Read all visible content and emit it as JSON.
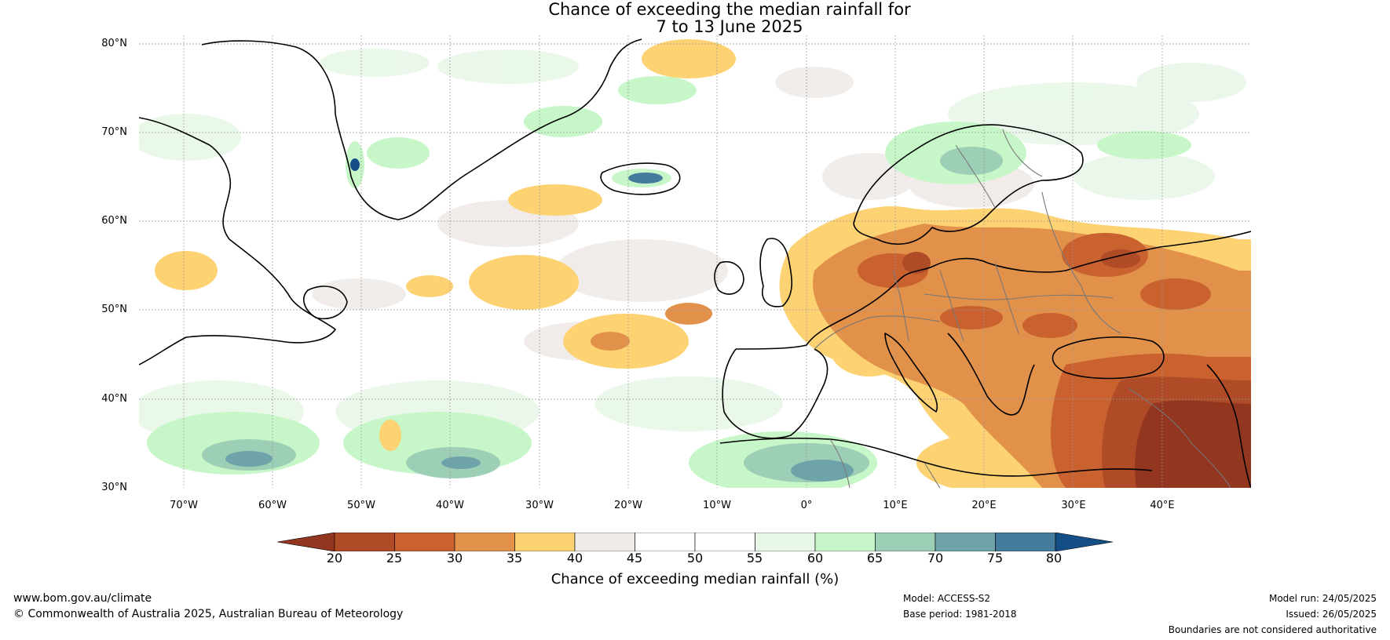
{
  "title": {
    "line1": "Chance of exceeding the median rainfall for",
    "line2": "7 to 13 June 2025"
  },
  "map": {
    "lat_labels": [
      "80°N",
      "70°N",
      "60°N",
      "50°N",
      "40°N",
      "30°N"
    ],
    "lon_labels": [
      "70°W",
      "60°W",
      "50°W",
      "40°W",
      "30°W",
      "20°W",
      "10°W",
      "0°",
      "10°E",
      "20°E",
      "30°E",
      "40°E"
    ],
    "lon_extent": [
      -75,
      50
    ],
    "lat_extent": [
      30,
      81
    ]
  },
  "colorbar": {
    "ticks": [
      "20",
      "25",
      "30",
      "35",
      "40",
      "45",
      "50",
      "55",
      "60",
      "65",
      "70",
      "75",
      "80"
    ],
    "colors": [
      "#92361f",
      "#b04b28",
      "#c9622f",
      "#e2914a",
      "#fdd272",
      "#f0ebe8",
      "#ffffff",
      "#ffffff",
      "#e8f7e8",
      "#c7f7c8",
      "#9ccfb5",
      "#6ea4a9",
      "#457b9c",
      "#134e86"
    ],
    "label": "Chance of exceeding median rainfall (%)"
  },
  "footer": {
    "website": "www.bom.gov.au/climate",
    "copyright": "© Commonwealth of Australia 2025, Australian Bureau of Meteorology",
    "model": "Model: ACCESS-S2",
    "base_period": "Base period: 1981-2018",
    "model_run": "Model run: 24/05/2025",
    "issued": "Issued: 26/05/2025",
    "disclaimer": "Boundaries are not considered authoritative"
  }
}
